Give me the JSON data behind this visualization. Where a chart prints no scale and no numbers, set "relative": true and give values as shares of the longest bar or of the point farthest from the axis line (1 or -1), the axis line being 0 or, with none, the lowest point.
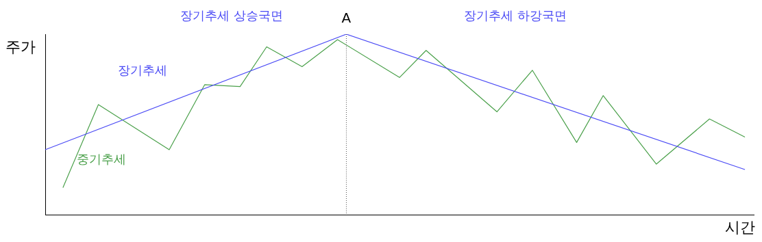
{
  "chart_data": {
    "type": "line",
    "relative": true,
    "xlabel": "시간",
    "ylabel": "주가",
    "grid": false,
    "legend": false,
    "marker": "none",
    "line_style": "solid",
    "categories": [
      null,
      null,
      null,
      null,
      null,
      null,
      null,
      null,
      null,
      null,
      null,
      null,
      null,
      null,
      null,
      null,
      null,
      null,
      null,
      null,
      null,
      null,
      null,
      null,
      null,
      null,
      null,
      null,
      null,
      null,
      null,
      null,
      null,
      null,
      null,
      null,
      null,
      null,
      null,
      null,
      null,
      null,
      null,
      null,
      null,
      null,
      null,
      null,
      null,
      null,
      null,
      null,
      null,
      null,
      null,
      null,
      null,
      null,
      null,
      null,
      null,
      null,
      null,
      null,
      null,
      null,
      null,
      null,
      null,
      null,
      null,
      null,
      null,
      null,
      null,
      null,
      null,
      null,
      null,
      null,
      null
    ],
    "series": [
      {
        "name": "장기추세",
        "color": "#4b4bf5",
        "values": [
          0.36,
          null,
          null,
          null,
          null,
          null,
          null,
          null,
          null,
          null,
          null,
          null,
          null,
          null,
          null,
          null,
          null,
          null,
          null,
          null,
          null,
          null,
          null,
          null,
          null,
          null,
          null,
          null,
          null,
          null,
          null,
          null,
          null,
          null,
          1,
          null,
          null,
          null,
          null,
          null,
          null,
          null,
          null,
          null,
          null,
          null,
          null,
          null,
          null,
          null,
          null,
          null,
          null,
          null,
          null,
          null,
          null,
          null,
          null,
          null,
          null,
          null,
          null,
          null,
          null,
          null,
          null,
          null,
          null,
          null,
          null,
          null,
          null,
          null,
          null,
          null,
          null,
          null,
          null,
          0.25,
          null
        ]
      },
      {
        "name": "중기추세",
        "color": "#4aa04a",
        "values": [
          null,
          null,
          0.15,
          null,
          null,
          null,
          0.61,
          null,
          null,
          null,
          null,
          null,
          null,
          null,
          0.36,
          null,
          null,
          null,
          0.72,
          null,
          null,
          null,
          0.71,
          null,
          null,
          0.93,
          null,
          null,
          null,
          0.82,
          null,
          null,
          null,
          0.97,
          null,
          null,
          null,
          null,
          null,
          null,
          0.76,
          null,
          null,
          0.91,
          null,
          null,
          null,
          null,
          null,
          null,
          null,
          0.57,
          null,
          null,
          null,
          0.8,
          null,
          null,
          null,
          null,
          0.4,
          null,
          null,
          0.66,
          null,
          null,
          null,
          null,
          null,
          0.28,
          null,
          null,
          null,
          null,
          null,
          0.53,
          null,
          null,
          null,
          0.43,
          null
        ]
      }
    ],
    "annotations": [
      "장기추세 상승국면",
      "장기추세 하강국면",
      {
        "text": "A",
        "y": 1
      }
    ]
  }
}
